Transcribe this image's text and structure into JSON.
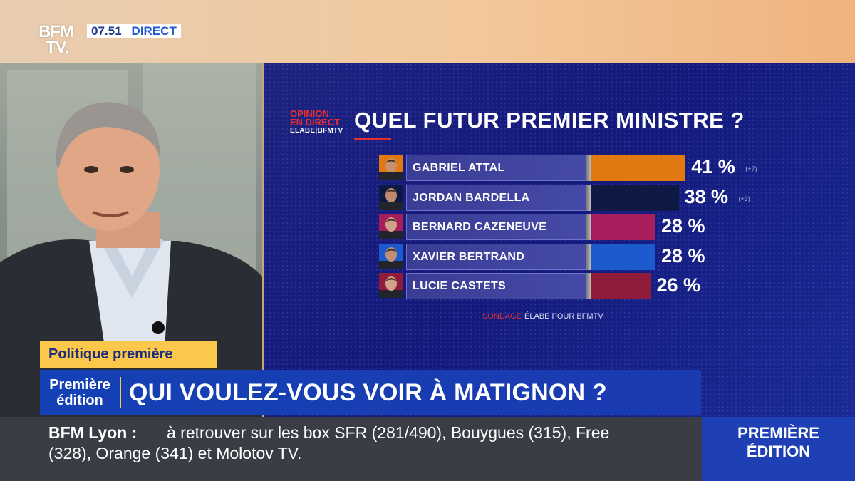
{
  "channel": {
    "logo_line1": "BFM",
    "logo_line2": "TV.",
    "time": "07.51",
    "live_label": "DIRECT"
  },
  "poll": {
    "brand_line1": "OPINION",
    "brand_line2": "EN DIRECT",
    "brand_line3": "ELABE|BFMTV",
    "question": "QUEL FUTUR PREMIER MINISTRE ?",
    "source_red": "SONDAGE",
    "source_text": "ÉLABE POUR BFMTV"
  },
  "chart_data": {
    "type": "bar",
    "orientation": "horizontal",
    "title": "QUEL FUTUR PREMIER MINISTRE ?",
    "categories": [
      "GABRIEL ATTAL",
      "JORDAN BARDELLA",
      "BERNARD CAZENEUVE",
      "XAVIER BERTRAND",
      "LUCIE CASTETS"
    ],
    "values": [
      41,
      38,
      28,
      28,
      26
    ],
    "value_labels": [
      "41 %",
      "38 %",
      "28 %",
      "28 %",
      "26 %"
    ],
    "changes": [
      "(+7)",
      "(+3)",
      "",
      "",
      ""
    ],
    "colors": [
      "#e07a10",
      "#0e1a44",
      "#a81d5c",
      "#1c5bcd",
      "#8f1c3a"
    ],
    "unit": "%"
  },
  "lower_third": {
    "tag": "Politique première",
    "program_line1": "Première",
    "program_line2": "édition",
    "headline": "QUI VOULEZ-VOUS VOIR À MATIGNON ?"
  },
  "ticker": {
    "label": "BFM Lyon :",
    "text_line1": "à retrouver sur les box SFR (281/490), Bouygues (315), Free",
    "text_line2": "(328), Orange (341) et Molotov TV."
  },
  "brand_box": {
    "line1": "PREMIÈRE",
    "line2": "ÉDITION"
  }
}
